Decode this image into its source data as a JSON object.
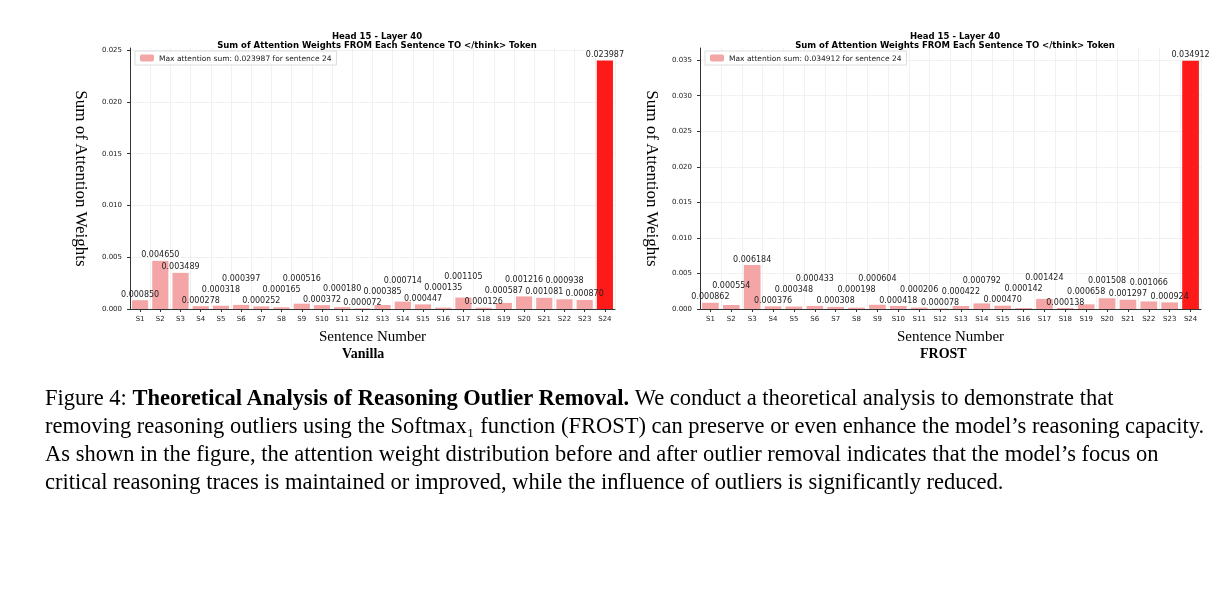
{
  "chart_data": [
    {
      "type": "bar",
      "title": "Head 15 - Layer 40",
      "subtitle": "Sum of Attention Weights FROM Each Sentence TO </think> Token",
      "xlabel": "Sentence Number",
      "ylabel": "Sum of Attention Weights",
      "categories": [
        "S1",
        "S2",
        "S3",
        "S4",
        "S5",
        "S6",
        "S7",
        "S8",
        "S9",
        "S10",
        "S11",
        "S12",
        "S13",
        "S14",
        "S15",
        "S16",
        "S17",
        "S18",
        "S19",
        "S20",
        "S21",
        "S22",
        "S23",
        "S24"
      ],
      "series": [
        {
          "name": "Max attention sum: 0.023987 for sentence 24",
          "color": "#f4a6a6",
          "colors": [
            "#f4a6a6",
            "#f4a6a6",
            "#f4a6a6",
            "#f4a6a6",
            "#f4a6a6",
            "#f4a6a6",
            "#f4a6a6",
            "#f4a6a6",
            "#f4a6a6",
            "#f4a6a6",
            "#f4a6a6",
            "#f4a6a6",
            "#f4a6a6",
            "#f4a6a6",
            "#f4a6a6",
            "#f4a6a6",
            "#f4a6a6",
            "#f4a6a6",
            "#f4a6a6",
            "#f4a6a6",
            "#f4a6a6",
            "#f4a6a6",
            "#f4a6a6",
            "#ff1a1a"
          ],
          "values": [
            0.00085,
            0.00465,
            0.003489,
            0.000278,
            0.000318,
            0.000397,
            0.000252,
            0.000165,
            0.000516,
            0.000372,
            0.00018,
            7.2e-05,
            0.000385,
            0.000714,
            0.000447,
            0.000135,
            0.001105,
            0.000126,
            0.000587,
            0.001216,
            0.001081,
            0.000938,
            0.00087,
            0.023987
          ],
          "value_labels": [
            "0.000850",
            "0.004650",
            "0.003489",
            "0.000278",
            "0.000318",
            "0.000397",
            "0.000252",
            "0.000165",
            "0.000516",
            "0.000372",
            "0.000180",
            "0.000072",
            "0.000385",
            "0.000714",
            "0.000447",
            "0.000135",
            "0.001105",
            "0.000126",
            "0.000587",
            "0.001216",
            "0.001081",
            "0.000938",
            "0.000870",
            "0.023987"
          ]
        }
      ],
      "ylim": [
        0,
        0.0252
      ],
      "yticks": [
        {
          "value": 0,
          "label": "0.000"
        },
        {
          "value": 0.005,
          "label": "0.005"
        },
        {
          "value": 0.01,
          "label": "0.010"
        },
        {
          "value": 0.015,
          "label": "0.015"
        },
        {
          "value": 0.02,
          "label": "0.020"
        },
        {
          "value": 0.025,
          "label": "0.025"
        }
      ],
      "grid": true,
      "legend": "top left",
      "annotations": [
        "Vanilla"
      ]
    },
    {
      "type": "bar",
      "title": "Head 15 - Layer 40",
      "subtitle": "Sum of Attention Weights FROM Each Sentence TO </think> Token",
      "xlabel": "Sentence Number",
      "ylabel": "Sum of Attention Weights",
      "categories": [
        "S1",
        "S2",
        "S3",
        "S4",
        "S5",
        "S6",
        "S7",
        "S8",
        "S9",
        "S10",
        "S11",
        "S12",
        "S13",
        "S14",
        "S15",
        "S16",
        "S17",
        "S18",
        "S19",
        "S20",
        "S21",
        "S22",
        "S23",
        "S24"
      ],
      "series": [
        {
          "name": "Max attention sum: 0.034912 for sentence 24",
          "color": "#f4a6a6",
          "colors": [
            "#f4a6a6",
            "#f4a6a6",
            "#f4a6a6",
            "#f4a6a6",
            "#f4a6a6",
            "#f4a6a6",
            "#f4a6a6",
            "#f4a6a6",
            "#f4a6a6",
            "#f4a6a6",
            "#f4a6a6",
            "#f4a6a6",
            "#f4a6a6",
            "#f4a6a6",
            "#f4a6a6",
            "#f4a6a6",
            "#f4a6a6",
            "#f4a6a6",
            "#f4a6a6",
            "#f4a6a6",
            "#f4a6a6",
            "#f4a6a6",
            "#f4a6a6",
            "#ff1a1a"
          ],
          "values": [
            0.000862,
            0.000554,
            0.006184,
            0.000376,
            0.000348,
            0.000433,
            0.000308,
            0.000198,
            0.000604,
            0.000418,
            0.000206,
            7.8e-05,
            0.000422,
            0.000792,
            0.00047,
            0.000142,
            0.001424,
            0.000138,
            0.000658,
            0.001508,
            0.001297,
            0.001066,
            0.000924,
            0.034912
          ],
          "value_labels": [
            "0.000862",
            "0.000554",
            "0.006184",
            "0.000376",
            "0.000348",
            "0.000433",
            "0.000308",
            "0.000198",
            "0.000604",
            "0.000418",
            "0.000206",
            "0.000078",
            "0.000422",
            "0.000792",
            "0.000470",
            "0.000142",
            "0.001424",
            "0.000138",
            "0.000658",
            "0.001508",
            "0.001297",
            "0.001066",
            "0.000924",
            "0.034912"
          ]
        }
      ],
      "ylim": [
        0,
        0.0367
      ],
      "yticks": [
        {
          "value": 0,
          "label": "0.000"
        },
        {
          "value": 0.005,
          "label": "0.005"
        },
        {
          "value": 0.01,
          "label": "0.010"
        },
        {
          "value": 0.015,
          "label": "0.015"
        },
        {
          "value": 0.02,
          "label": "0.020"
        },
        {
          "value": 0.025,
          "label": "0.025"
        },
        {
          "value": 0.03,
          "label": "0.030"
        },
        {
          "value": 0.035,
          "label": "0.035"
        }
      ],
      "grid": true,
      "legend": "top left",
      "annotations": [
        "FROST",
        "Figure 4: ",
        "Theoretical Analysis of Reasoning Outlier Removal.",
        "We conduct a theoretical analysis to demonstrate that removing reasoning outliers using the Softmax₁ function (FROST) can preserve or even enhance the model’s reasoning capacity. As shown in the figure, the attention weight distribution before and after outlier removal indicates that the model’s focus on critical reasoning traces is maintained or improved, while the influence of outliers is significantly reduced."
      ]
    }
  ]
}
